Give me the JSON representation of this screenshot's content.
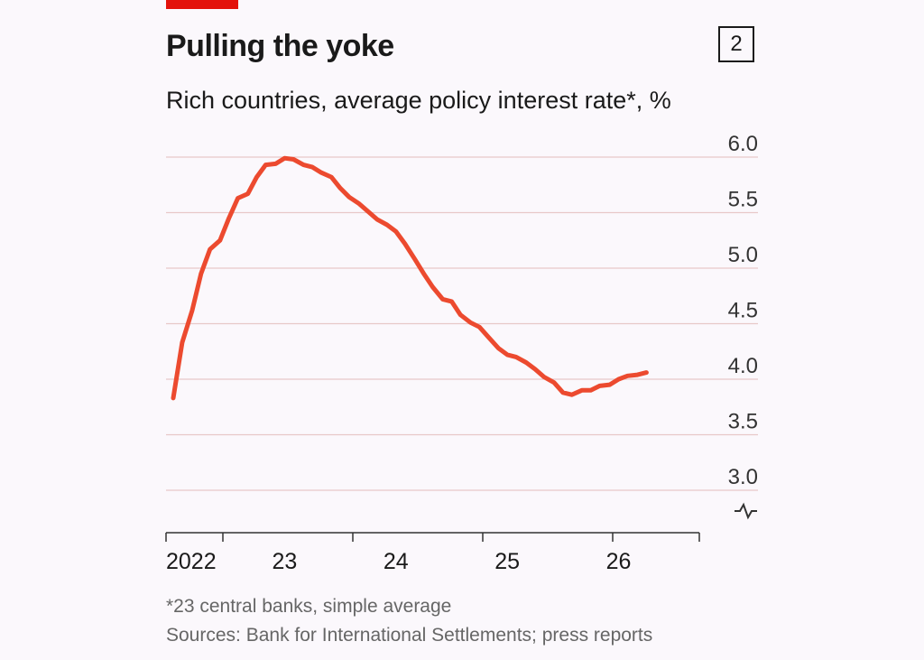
{
  "header": {
    "title": "Pulling the yoke",
    "chart_number": "2",
    "subtitle": "Rich countries, average policy interest rate*, %"
  },
  "footer": {
    "note": "*23 central banks, simple average",
    "sources": "Sources: Bank for International Settlements; press reports"
  },
  "colors": {
    "accent": "#e3120b",
    "line": "#ec4a2f",
    "grid": "#e8c8c8"
  },
  "chart_data": {
    "type": "line",
    "title": "Pulling the yoke",
    "subtitle": "Rich countries, average policy interest rate*, %",
    "ylim": [
      3.0,
      6.0
    ],
    "yticks": [
      6.0,
      5.5,
      5.0,
      4.5,
      4.0,
      3.5,
      3.0
    ],
    "ytick_labels": [
      "6.0",
      "5.5",
      "5.0",
      "4.5",
      "4.0",
      "3.5",
      "3.0"
    ],
    "y_axis_side": "right",
    "y_axis_break": true,
    "xlim": [
      2022.0,
      2026.66
    ],
    "xtick_labels": [
      {
        "label": "2022",
        "x": 2022.0
      },
      {
        "label": "23",
        "x": 2023.0
      },
      {
        "label": "24",
        "x": 2024.0
      },
      {
        "label": "25",
        "x": 2025.0
      },
      {
        "label": "26",
        "x": 2026.0
      }
    ],
    "xticks": [
      2022.0,
      2022.42,
      2023.42,
      2024.42,
      2025.42,
      2026.42
    ],
    "grid": true,
    "series": [
      {
        "values": [
          [
            2022.0,
            3.83
          ],
          [
            2022.08,
            4.33
          ],
          [
            2022.17,
            4.62
          ],
          [
            2022.25,
            4.95
          ],
          [
            2022.33,
            5.17
          ],
          [
            2022.42,
            5.25
          ],
          [
            2022.5,
            5.45
          ],
          [
            2022.58,
            5.63
          ],
          [
            2022.67,
            5.67
          ],
          [
            2022.75,
            5.82
          ],
          [
            2022.83,
            5.93
          ],
          [
            2022.92,
            5.94
          ],
          [
            2023.0,
            5.99
          ],
          [
            2023.08,
            5.98
          ],
          [
            2023.17,
            5.93
          ],
          [
            2023.25,
            5.91
          ],
          [
            2023.33,
            5.86
          ],
          [
            2023.42,
            5.82
          ],
          [
            2023.5,
            5.72
          ],
          [
            2023.58,
            5.64
          ],
          [
            2023.67,
            5.58
          ],
          [
            2023.75,
            5.51
          ],
          [
            2023.83,
            5.44
          ],
          [
            2023.92,
            5.39
          ],
          [
            2024.0,
            5.33
          ],
          [
            2024.08,
            5.22
          ],
          [
            2024.17,
            5.08
          ],
          [
            2024.25,
            4.95
          ],
          [
            2024.33,
            4.83
          ],
          [
            2024.42,
            4.72
          ],
          [
            2024.5,
            4.7
          ],
          [
            2024.58,
            4.58
          ],
          [
            2024.67,
            4.51
          ],
          [
            2024.75,
            4.47
          ],
          [
            2024.83,
            4.38
          ],
          [
            2024.92,
            4.28
          ],
          [
            2025.0,
            4.22
          ],
          [
            2025.08,
            4.2
          ],
          [
            2025.17,
            4.15
          ],
          [
            2025.25,
            4.09
          ],
          [
            2025.33,
            4.02
          ],
          [
            2025.42,
            3.97
          ],
          [
            2025.5,
            3.88
          ],
          [
            2025.58,
            3.86
          ],
          [
            2025.67,
            3.9
          ],
          [
            2025.75,
            3.9
          ],
          [
            2025.83,
            3.94
          ],
          [
            2025.92,
            3.95
          ],
          [
            2026.0,
            4.0
          ],
          [
            2026.08,
            4.03
          ],
          [
            2026.17,
            4.04
          ],
          [
            2026.25,
            4.06
          ]
        ]
      }
    ]
  }
}
